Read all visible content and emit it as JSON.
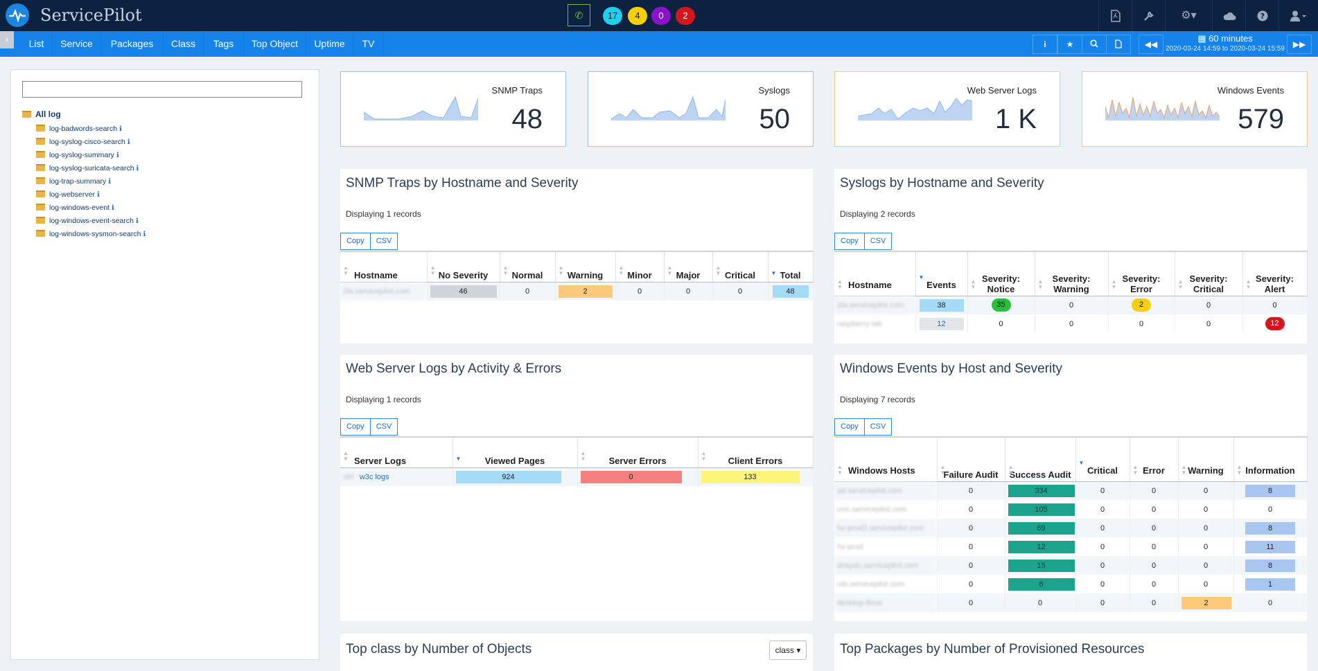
{
  "app": {
    "title": "ServicePilot"
  },
  "topbar": {
    "phone_icon": "phone-icon",
    "counters": [
      {
        "value": "17",
        "color": "#1fd0ea"
      },
      {
        "value": "4",
        "color": "#f6cf0a"
      },
      {
        "value": "0",
        "color": "#8a12c9"
      },
      {
        "value": "2",
        "color": "#d4161d"
      }
    ],
    "icons": [
      "pdf-icon",
      "wrench-icon",
      "gears-icon",
      "cloud-icon",
      "help-icon",
      "user-icon"
    ]
  },
  "nav": {
    "items": [
      "List",
      "Service",
      "Packages",
      "Class",
      "Tags",
      "Top Object",
      "Uptime",
      "TV"
    ],
    "tools": [
      "info-icon",
      "star-icon",
      "search-icon",
      "document-icon"
    ],
    "time": {
      "duration": "60 minutes",
      "range": "2020-03-24 14:59 to 2020-03-24 15:59"
    }
  },
  "sidebar": {
    "search_placeholder": "",
    "root": "All log",
    "items": [
      "log-badwords-search",
      "log-syslog-cisco-search",
      "log-syslog-summary",
      "log-syslog-suricata-search",
      "log-trap-summary",
      "log-webserver",
      "log-windows-event",
      "log-windows-event-search",
      "log-windows-sysmon-search"
    ]
  },
  "kpis": [
    {
      "title": "SNMP Traps",
      "value": "48"
    },
    {
      "title": "Syslogs",
      "value": "50"
    },
    {
      "title": "Web Server Logs",
      "value": "1 K"
    },
    {
      "title": "Windows Events",
      "value": "579"
    }
  ],
  "snmp": {
    "title": "SNMP Traps by Hostname and Severity",
    "subtitle": "Displaying 1 records",
    "buttons": [
      "Copy",
      "CSV"
    ],
    "columns": [
      "Hostname",
      "No Severity",
      "Normal",
      "Warning",
      "Minor",
      "Major",
      "Critical",
      "Total"
    ],
    "rows": [
      {
        "host": "2la.servicepilot.com",
        "values": [
          "46",
          "0",
          "2",
          "0",
          "0",
          "0",
          "48"
        ]
      }
    ],
    "colors": {
      "no_severity": "#d0d4da",
      "warning": "#fbc97a",
      "total": "#a6dbf7"
    }
  },
  "syslog": {
    "title": "Syslogs by Hostname and Severity",
    "subtitle": "Displaying 2 records",
    "buttons": [
      "Copy",
      "CSV"
    ],
    "columns": [
      "Hostname",
      "Events",
      "Severity: Notice",
      "Severity: Warning",
      "Severity: Error",
      "Severity: Critical",
      "Severity: Alert"
    ],
    "rows": [
      {
        "host": "2la.servicepilot.com",
        "values": [
          "38",
          "35",
          "0",
          "2",
          "0",
          "0"
        ]
      },
      {
        "host": "raspberry-lab",
        "values": [
          "12",
          "0",
          "0",
          "0",
          "0",
          "12"
        ]
      }
    ],
    "colors": {
      "notice": "#27c03d",
      "error": "#f6cf0a",
      "alert": "#d4161d"
    }
  },
  "web": {
    "title": "Web Server Logs by Activity & Errors",
    "subtitle": "Displaying 1 records",
    "buttons": [
      "Copy",
      "CSV"
    ],
    "columns": [
      "Server Logs",
      "Viewed Pages",
      "Server Errors",
      "Client Errors"
    ],
    "rows": [
      {
        "host": "w3c logs",
        "values": [
          "924",
          "0",
          "133"
        ]
      }
    ],
    "colors": {
      "viewed": "#a6dbf7",
      "server_errors": "#f47f7f",
      "client_errors": "#fdf57a"
    }
  },
  "windows": {
    "title": "Windows Events by Host and Severity",
    "subtitle": "Displaying 7 records",
    "buttons": [
      "Copy",
      "CSV"
    ],
    "columns": [
      "Windows Hosts",
      "Failure Audit",
      "Success Audit",
      "Critical",
      "Error",
      "Warning",
      "Information"
    ],
    "rows": [
      {
        "host": "ad.servicepilot.com",
        "values": [
          "0",
          "334",
          "0",
          "0",
          "0",
          "8"
        ]
      },
      {
        "host": "crm.servicepilot.com",
        "values": [
          "0",
          "105",
          "0",
          "0",
          "0",
          "0"
        ]
      },
      {
        "host": "hv-prod3.servicepilot.com",
        "values": [
          "0",
          "69",
          "0",
          "0",
          "0",
          "8"
        ]
      },
      {
        "host": "hv-prod",
        "values": [
          "0",
          "12",
          "0",
          "0",
          "0",
          "11"
        ]
      },
      {
        "host": "dnspdc.servicepilot.com",
        "values": [
          "0",
          "15",
          "0",
          "0",
          "0",
          "8"
        ]
      },
      {
        "host": "rds.servicepilot.com",
        "values": [
          "0",
          "6",
          "0",
          "0",
          "0",
          "1"
        ]
      },
      {
        "host": "desktop-lfvuo",
        "values": [
          "0",
          "0",
          "0",
          "0",
          "2",
          "0"
        ]
      }
    ],
    "colors": {
      "success": "#1ba38e",
      "warning": "#fbc97a",
      "information": "#a8c6f0"
    }
  },
  "top_class": {
    "title": "Top class by Number of Objects",
    "select": "class"
  },
  "top_packages": {
    "title": "Top Packages by Number of Provisioned Resources"
  }
}
